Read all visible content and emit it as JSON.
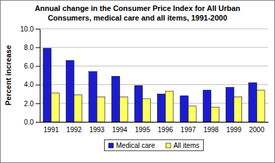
{
  "chart_data": {
    "type": "bar",
    "title": "Annual change in the Consumer Price Index for All Urban Consumers, medical care and all items, 1991-2000",
    "y_label": "Percent increase",
    "categories": [
      "1991",
      "1992",
      "1993",
      "1994",
      "1995",
      "1996",
      "1997",
      "1998",
      "1999",
      "2000"
    ],
    "series": [
      {
        "name": "Medical care",
        "color": "#1c1ccf",
        "values": [
          7.9,
          6.6,
          5.4,
          4.9,
          3.9,
          3.0,
          2.8,
          3.4,
          3.7,
          4.2
        ]
      },
      {
        "name": "All items",
        "color": "#ffff66",
        "values": [
          3.1,
          2.9,
          2.7,
          2.7,
          2.5,
          3.3,
          1.7,
          1.6,
          2.7,
          3.4
        ]
      }
    ],
    "ylim": [
      0,
      10
    ],
    "yticks": [
      {
        "value": 0,
        "label": "0.0"
      },
      {
        "value": 2,
        "label": "2.0"
      },
      {
        "value": 4,
        "label": "4.0"
      },
      {
        "value": 6,
        "label": "6.0"
      },
      {
        "value": 8,
        "label": "8.0"
      },
      {
        "value": 10,
        "label": "10.0"
      }
    ],
    "grid": true,
    "legend": "bottom"
  }
}
